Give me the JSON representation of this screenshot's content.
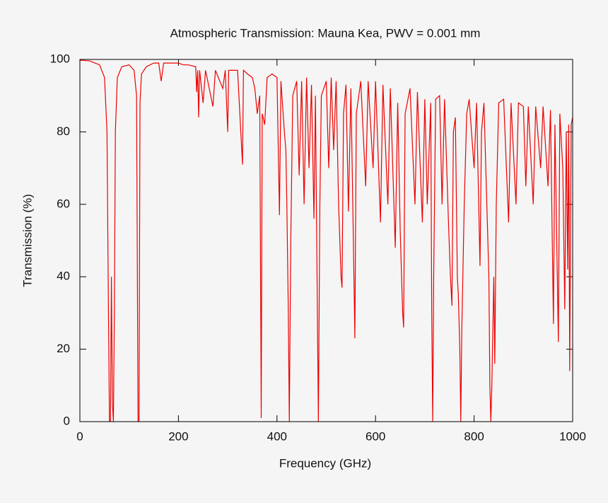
{
  "chart_data": {
    "type": "line",
    "title": "Atmospheric Transmission: Mauna Kea, PWV = 0.001 mm",
    "x_label": "Frequency (GHz)",
    "y_label": "Transmission (%)",
    "xlim": [
      0,
      1000
    ],
    "xticks": [
      0,
      200,
      400,
      600,
      800,
      1000
    ],
    "ylim": [
      0,
      100
    ],
    "yticks": [
      0,
      20,
      40,
      60,
      80,
      100
    ],
    "grid": false,
    "series": [
      {
        "color": "#ee0000",
        "x": [
          0,
          20,
          40,
          50,
          55,
          58,
          60,
          62,
          64,
          66,
          68,
          70,
          72,
          76,
          85,
          100,
          110,
          115,
          118,
          120,
          122,
          125,
          135,
          150,
          160,
          165,
          170,
          200,
          210,
          220,
          235,
          237,
          239,
          241,
          243,
          250,
          255,
          270,
          275,
          290,
          295,
          300,
          302,
          320,
          330,
          332,
          340,
          350,
          355,
          360,
          365,
          368,
          370,
          375,
          380,
          390,
          400,
          405,
          408,
          415,
          418,
          420,
          423,
          425,
          428,
          432,
          440,
          445,
          450,
          455,
          460,
          465,
          470,
          475,
          478,
          482,
          484,
          487,
          490,
          500,
          505,
          510,
          515,
          520,
          525,
          530,
          532,
          535,
          540,
          545,
          550,
          555,
          558,
          561,
          570,
          580,
          585,
          595,
          600,
          610,
          615,
          625,
          630,
          640,
          645,
          650,
          655,
          657,
          660,
          670,
          680,
          685,
          695,
          700,
          705,
          712,
          714,
          716,
          718,
          722,
          730,
          735,
          740,
          748,
          752,
          755,
          758,
          762,
          766,
          768,
          771,
          773,
          775,
          780,
          785,
          790,
          800,
          805,
          812,
          815,
          820,
          830,
          832,
          834,
          836,
          840,
          842,
          845,
          850,
          860,
          870,
          875,
          885,
          890,
          900,
          905,
          910,
          920,
          925,
          935,
          940,
          950,
          955,
          961,
          964,
          971,
          974,
          980,
          984,
          987,
          990,
          992,
          994,
          997,
          1000
        ],
        "values": [
          99.8,
          99.6,
          98.5,
          95,
          80,
          30,
          0,
          0,
          40,
          5,
          0,
          30,
          80,
          95,
          98,
          98.5,
          97,
          90,
          0,
          0,
          88,
          96,
          98,
          99,
          99,
          94,
          99,
          99,
          98.5,
          98.5,
          98,
          91,
          97,
          84,
          97,
          88,
          97,
          87,
          97,
          92,
          97,
          80,
          97,
          97,
          71,
          97,
          96,
          95,
          92,
          85,
          90,
          1,
          85,
          82,
          95,
          96,
          95,
          57,
          94,
          80,
          75,
          60,
          30,
          0,
          50,
          90,
          94,
          68,
          94,
          60,
          95,
          70,
          93,
          56,
          90,
          30,
          0,
          60,
          90,
          94,
          70,
          95,
          75,
          94,
          60,
          40,
          37,
          85,
          93,
          58,
          92,
          50,
          23,
          85,
          94,
          65,
          94,
          70,
          94,
          55,
          93,
          60,
          92,
          48,
          88,
          53,
          30,
          26,
          85,
          92,
          60,
          91,
          55,
          89,
          60,
          88,
          30,
          0,
          40,
          89,
          90,
          60,
          89,
          55,
          40,
          32,
          80,
          84,
          40,
          35,
          20,
          0,
          25,
          60,
          85,
          89,
          70,
          88,
          43,
          80,
          88,
          40,
          10,
          0,
          10,
          40,
          16,
          60,
          88,
          89,
          55,
          88,
          60,
          88,
          87,
          65,
          87,
          60,
          87,
          70,
          87,
          65,
          86,
          27,
          82,
          22,
          85,
          70,
          31,
          80,
          42,
          82,
          14,
          82,
          84
        ]
      }
    ]
  }
}
